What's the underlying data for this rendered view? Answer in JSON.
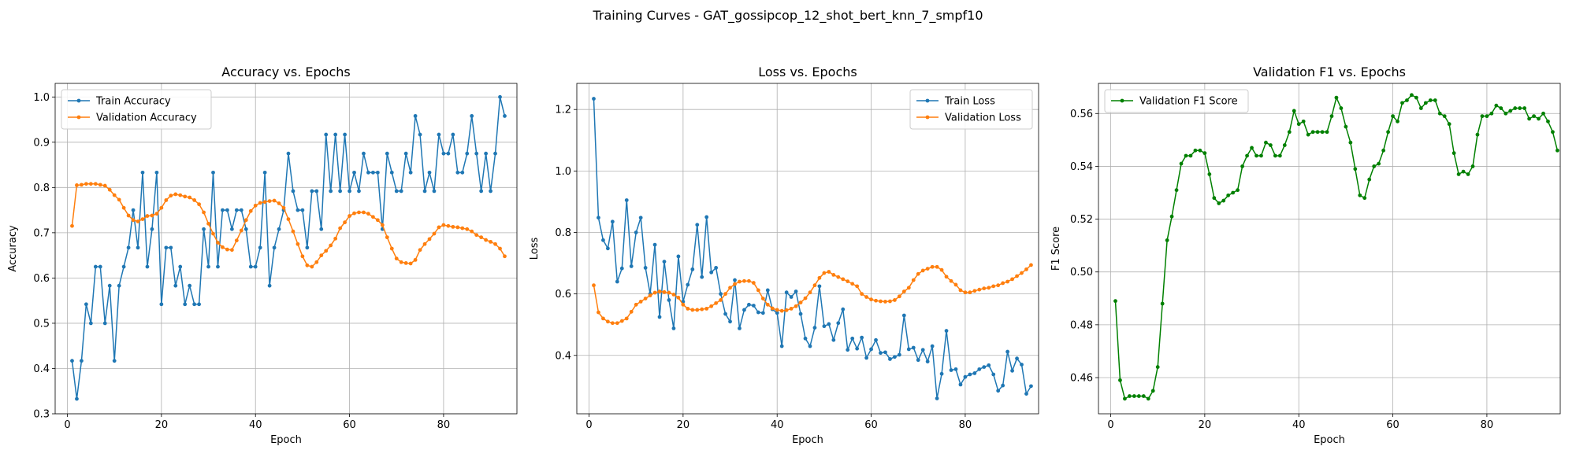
{
  "figure": {
    "suptitle": "Training Curves - GAT_gossipcop_12_shot_bert_knn_7_smpf10"
  },
  "colors": {
    "blue": "#1f77b4",
    "orange": "#ff7f0e",
    "green": "#008000",
    "grid": "#b0b0b0",
    "axis": "#000000"
  },
  "chart_data": [
    {
      "type": "line",
      "title": "Accuracy vs. Epochs",
      "xlabel": "Epoch",
      "ylabel": "Accuracy",
      "xlim": [
        -2.6,
        95.6
      ],
      "ylim": [
        0.3,
        1.03
      ],
      "xticks": [
        0,
        20,
        40,
        60,
        80
      ],
      "yticks": [
        0.3,
        0.4,
        0.5,
        0.6,
        0.7,
        0.8,
        0.9,
        1.0
      ],
      "ytick_labels": [
        "0.3",
        "0.4",
        "0.5",
        "0.6",
        "0.7",
        "0.8",
        "0.9",
        "1.0"
      ],
      "grid": true,
      "legend": "upper left",
      "series": [
        {
          "name": "Train Accuracy",
          "color": "#1f77b4",
          "values": [
            0.417,
            0.333,
            0.417,
            0.542,
            0.5,
            0.625,
            0.625,
            0.5,
            0.583,
            0.417,
            0.583,
            0.625,
            0.667,
            0.75,
            0.667,
            0.833,
            0.625,
            0.708,
            0.833,
            0.542,
            0.667,
            0.667,
            0.583,
            0.625,
            0.542,
            0.583,
            0.542,
            0.542,
            0.708,
            0.625,
            0.833,
            0.625,
            0.75,
            0.75,
            0.708,
            0.75,
            0.75,
            0.708,
            0.625,
            0.625,
            0.667,
            0.833,
            0.583,
            0.667,
            0.708,
            0.75,
            0.875,
            0.792,
            0.75,
            0.75,
            0.667,
            0.792,
            0.792,
            0.708,
            0.917,
            0.792,
            0.917,
            0.792,
            0.917,
            0.792,
            0.833,
            0.792,
            0.875,
            0.833,
            0.833,
            0.833,
            0.708,
            0.875,
            0.833,
            0.792,
            0.792,
            0.875,
            0.833,
            0.958,
            0.917,
            0.792,
            0.833,
            0.792,
            0.917,
            0.875,
            0.875,
            0.917,
            0.833,
            0.833,
            0.875,
            0.958,
            0.875,
            0.792,
            0.875,
            0.792,
            0.875,
            1.0,
            0.958
          ]
        },
        {
          "name": "Validation Accuracy",
          "color": "#ff7f0e",
          "values": [
            0.715,
            0.805,
            0.806,
            0.808,
            0.808,
            0.808,
            0.806,
            0.804,
            0.795,
            0.783,
            0.773,
            0.755,
            0.738,
            0.728,
            0.725,
            0.73,
            0.737,
            0.738,
            0.742,
            0.755,
            0.772,
            0.782,
            0.785,
            0.783,
            0.78,
            0.778,
            0.772,
            0.763,
            0.745,
            0.72,
            0.698,
            0.678,
            0.668,
            0.663,
            0.662,
            0.683,
            0.705,
            0.728,
            0.748,
            0.76,
            0.766,
            0.768,
            0.77,
            0.771,
            0.765,
            0.755,
            0.73,
            0.703,
            0.675,
            0.648,
            0.628,
            0.625,
            0.635,
            0.65,
            0.66,
            0.672,
            0.687,
            0.71,
            0.723,
            0.737,
            0.743,
            0.745,
            0.745,
            0.742,
            0.735,
            0.728,
            0.717,
            0.69,
            0.665,
            0.643,
            0.635,
            0.633,
            0.632,
            0.64,
            0.662,
            0.675,
            0.686,
            0.698,
            0.712,
            0.717,
            0.715,
            0.713,
            0.712,
            0.71,
            0.708,
            0.703,
            0.695,
            0.69,
            0.684,
            0.68,
            0.675,
            0.665,
            0.648
          ]
        }
      ]
    },
    {
      "type": "line",
      "title": "Loss vs. Epochs",
      "xlabel": "Epoch",
      "ylabel": "Loss",
      "xlim": [
        -2.6,
        95.6
      ],
      "ylim": [
        0.21,
        1.285
      ],
      "xticks": [
        0,
        20,
        40,
        60,
        80
      ],
      "yticks": [
        0.4,
        0.6,
        0.8,
        1.0,
        1.2
      ],
      "ytick_labels": [
        "0.4",
        "0.6",
        "0.8",
        "1.0",
        "1.2"
      ],
      "grid": true,
      "legend": "upper right",
      "series": [
        {
          "name": "Train Loss",
          "color": "#1f77b4",
          "values": [
            1.235,
            0.848,
            0.775,
            0.748,
            0.835,
            0.64,
            0.683,
            0.905,
            0.69,
            0.8,
            0.848,
            0.685,
            0.6,
            0.76,
            0.525,
            0.705,
            0.58,
            0.488,
            0.722,
            0.575,
            0.63,
            0.68,
            0.825,
            0.655,
            0.85,
            0.67,
            0.685,
            0.6,
            0.535,
            0.51,
            0.645,
            0.488,
            0.548,
            0.565,
            0.562,
            0.54,
            0.538,
            0.612,
            0.55,
            0.538,
            0.43,
            0.605,
            0.59,
            0.608,
            0.535,
            0.455,
            0.43,
            0.49,
            0.625,
            0.495,
            0.502,
            0.45,
            0.505,
            0.55,
            0.418,
            0.455,
            0.422,
            0.458,
            0.392,
            0.42,
            0.45,
            0.408,
            0.41,
            0.388,
            0.395,
            0.402,
            0.53,
            0.42,
            0.425,
            0.385,
            0.418,
            0.38,
            0.43,
            0.26,
            0.34,
            0.48,
            0.352,
            0.355,
            0.305,
            0.33,
            0.338,
            0.342,
            0.355,
            0.362,
            0.368,
            0.338,
            0.285,
            0.302,
            0.412,
            0.35,
            0.39,
            0.37,
            0.275,
            0.3
          ]
        },
        {
          "name": "Validation Loss",
          "color": "#ff7f0e",
          "values": [
            0.628,
            0.54,
            0.52,
            0.51,
            0.505,
            0.505,
            0.512,
            0.52,
            0.542,
            0.565,
            0.575,
            0.585,
            0.595,
            0.604,
            0.608,
            0.606,
            0.604,
            0.598,
            0.588,
            0.565,
            0.552,
            0.548,
            0.548,
            0.55,
            0.552,
            0.56,
            0.57,
            0.58,
            0.6,
            0.62,
            0.632,
            0.64,
            0.642,
            0.642,
            0.636,
            0.612,
            0.585,
            0.565,
            0.553,
            0.548,
            0.545,
            0.547,
            0.552,
            0.56,
            0.572,
            0.586,
            0.605,
            0.628,
            0.652,
            0.668,
            0.672,
            0.662,
            0.655,
            0.648,
            0.641,
            0.633,
            0.625,
            0.6,
            0.59,
            0.582,
            0.578,
            0.576,
            0.575,
            0.576,
            0.58,
            0.592,
            0.608,
            0.62,
            0.645,
            0.665,
            0.676,
            0.682,
            0.688,
            0.688,
            0.678,
            0.656,
            0.642,
            0.63,
            0.612,
            0.605,
            0.605,
            0.61,
            0.614,
            0.618,
            0.62,
            0.625,
            0.628,
            0.635,
            0.64,
            0.648,
            0.658,
            0.668,
            0.68,
            0.694
          ]
        }
      ]
    },
    {
      "type": "line",
      "title": "Validation F1 vs. Epochs",
      "xlabel": "Epoch",
      "ylabel": "F1 Score",
      "xlim": [
        -2.6,
        95.6
      ],
      "ylim": [
        0.4463,
        0.5714
      ],
      "xticks": [
        0,
        20,
        40,
        60,
        80
      ],
      "yticks": [
        0.46,
        0.48,
        0.5,
        0.52,
        0.54,
        0.56
      ],
      "ytick_labels": [
        "0.46",
        "0.48",
        "0.50",
        "0.52",
        "0.54",
        "0.56"
      ],
      "grid": true,
      "legend": "upper left",
      "series": [
        {
          "name": "Validation F1 Score",
          "color": "#008000",
          "values": [
            0.489,
            0.459,
            0.452,
            0.453,
            0.453,
            0.453,
            0.453,
            0.452,
            0.455,
            0.464,
            0.488,
            0.512,
            0.521,
            0.531,
            0.541,
            0.544,
            0.544,
            0.546,
            0.546,
            0.545,
            0.537,
            0.528,
            0.526,
            0.527,
            0.529,
            0.53,
            0.531,
            0.54,
            0.544,
            0.547,
            0.544,
            0.544,
            0.549,
            0.548,
            0.544,
            0.544,
            0.548,
            0.553,
            0.561,
            0.556,
            0.557,
            0.552,
            0.553,
            0.553,
            0.553,
            0.553,
            0.559,
            0.566,
            0.562,
            0.555,
            0.549,
            0.539,
            0.529,
            0.528,
            0.535,
            0.54,
            0.541,
            0.546,
            0.553,
            0.559,
            0.557,
            0.564,
            0.565,
            0.567,
            0.566,
            0.562,
            0.564,
            0.565,
            0.565,
            0.56,
            0.559,
            0.556,
            0.545,
            0.537,
            0.538,
            0.537,
            0.54,
            0.552,
            0.559,
            0.559,
            0.56,
            0.563,
            0.562,
            0.56,
            0.561,
            0.562,
            0.562,
            0.562,
            0.558,
            0.559,
            0.558,
            0.56,
            0.557,
            0.553,
            0.546
          ]
        }
      ]
    }
  ]
}
